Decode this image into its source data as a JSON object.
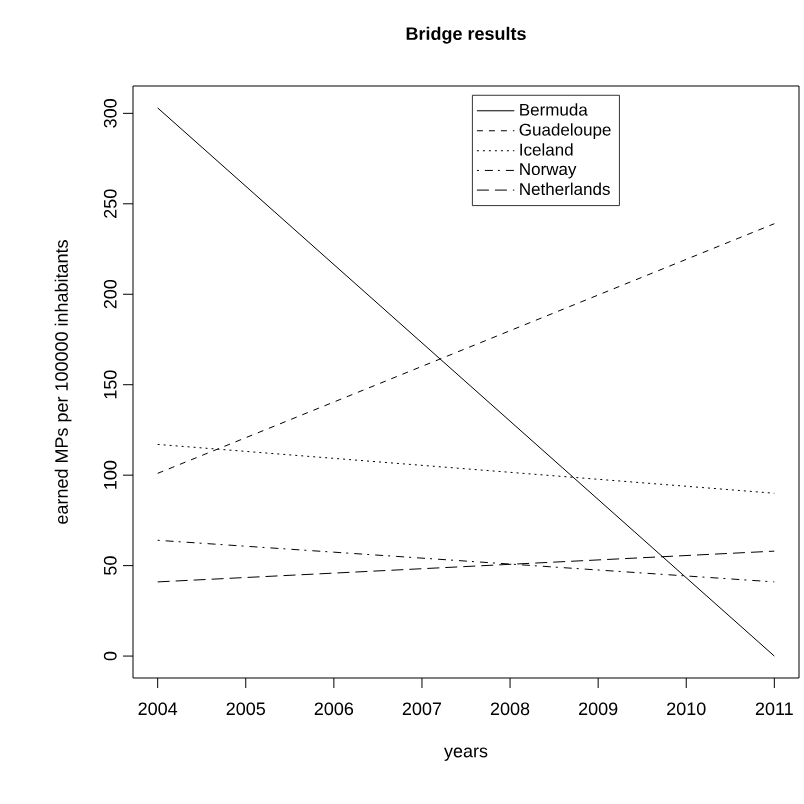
{
  "chart_data": {
    "type": "line",
    "title": "Bridge results",
    "xlabel": "years",
    "ylabel": "earned MPs per 100000 inhabitants",
    "x": [
      2004,
      2011
    ],
    "xlim": [
      2003.72,
      2011.28
    ],
    "ylim": [
      -12.12,
      315.12
    ],
    "xticks": [
      2004,
      2005,
      2006,
      2007,
      2008,
      2009,
      2010,
      2011
    ],
    "yticks": [
      0,
      50,
      100,
      150,
      200,
      250,
      300
    ],
    "grid": false,
    "legend": "top",
    "marker": "none",
    "series": [
      {
        "name": "Bermuda",
        "color": "#000000",
        "line_style": "solid",
        "values": [
          303,
          0
        ]
      },
      {
        "name": "Guadeloupe",
        "color": "#000000",
        "line_style": "dashed",
        "values": [
          101,
          239
        ]
      },
      {
        "name": "Iceland",
        "color": "#000000",
        "line_style": "dotted",
        "values": [
          117,
          90
        ]
      },
      {
        "name": "Norway",
        "color": "#000000",
        "line_style": "dashdot",
        "values": [
          64,
          41
        ]
      },
      {
        "name": "Netherlands",
        "color": "#000000",
        "line_style": "longdash",
        "values": [
          41,
          58
        ]
      }
    ]
  }
}
